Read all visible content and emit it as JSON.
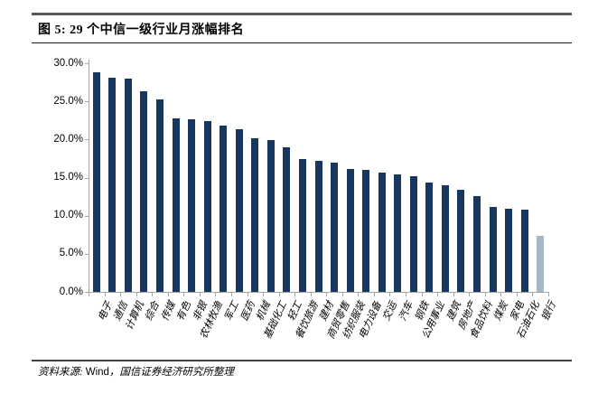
{
  "figure": {
    "title": "图 5: 29 个中信一级行业月涨幅排名",
    "source": {
      "prefix": "资料来源: ",
      "vendor": "Wind",
      "suffix": "，国信证券经济研究所整理"
    }
  },
  "chart_data": {
    "type": "bar",
    "title": "29个中信一级行业月涨幅排名",
    "xlabel": "",
    "ylabel": "",
    "ylim": [
      0,
      30
    ],
    "yticks": [
      30,
      25,
      20,
      15,
      10,
      5,
      0
    ],
    "ytick_labels": [
      "30.0%",
      "25.0%",
      "20.0%",
      "15.0%",
      "10.0%",
      "5.0%",
      "0.0%"
    ],
    "unit": "percent",
    "grid": false,
    "legend": false,
    "categories": [
      "电子",
      "通信",
      "计算机",
      "综合",
      "传媒",
      "有色",
      "非银",
      "农林牧渔",
      "军工",
      "医药",
      "机械",
      "基础化工",
      "轻工",
      "餐饮旅游",
      "建材",
      "商贸零售",
      "纺织服装",
      "电力设备",
      "交运",
      "汽车",
      "钢铁",
      "公用事业",
      "建筑",
      "房地产",
      "食品饮料",
      "煤炭",
      "家电",
      "石油石化",
      "银行"
    ],
    "values": [
      28.8,
      28.1,
      28.0,
      26.3,
      25.3,
      22.8,
      22.7,
      22.4,
      21.8,
      21.4,
      20.2,
      19.9,
      19.0,
      17.4,
      17.2,
      16.9,
      16.1,
      16.0,
      15.6,
      15.4,
      15.2,
      14.3,
      14.0,
      13.4,
      12.6,
      11.2,
      10.9,
      10.8,
      7.4
    ],
    "bar_color": "#17375E",
    "last_bar_color": "#A3B8C9",
    "axis_color": "#A6A6A6"
  }
}
